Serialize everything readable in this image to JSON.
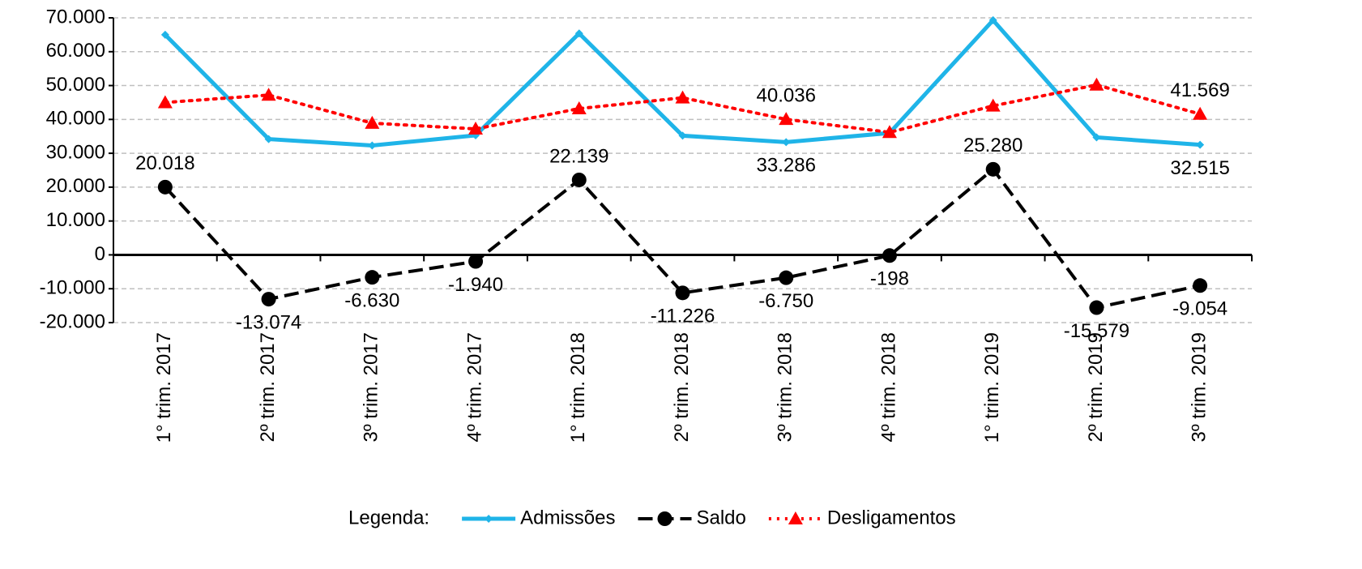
{
  "chart_data": {
    "type": "line",
    "categories": [
      "1° trim. 2017",
      "2º trim. 2017",
      "3º trim. 2017",
      "4º trim. 2017",
      "1° trim. 2018",
      "2º trim. 2018",
      "3º trim. 2018",
      "4º trim. 2018",
      "1° trim. 2019",
      "2º trim. 2019",
      "3º trim. 2019"
    ],
    "series": [
      {
        "name": "Admissões",
        "color": "#1fb4e8",
        "style": "solid",
        "marker": "diamond",
        "values": [
          65000,
          34200,
          32300,
          35300,
          65400,
          35200,
          33286,
          36000,
          69300,
          34700,
          32515
        ],
        "value_labels": [
          null,
          null,
          null,
          null,
          null,
          null,
          "33.286",
          null,
          null,
          null,
          "32.515"
        ]
      },
      {
        "name": "Saldo",
        "color": "#000000",
        "style": "dashed",
        "marker": "circle",
        "values": [
          20018,
          -13074,
          -6630,
          -1940,
          22139,
          -11226,
          -6750,
          -198,
          25280,
          -15579,
          -9054
        ],
        "value_labels": [
          "20.018",
          "-13.074",
          "-6.630",
          "-1.940",
          "22.139",
          "-11.226",
          "-6.750",
          "-198",
          "25.280",
          "-15.579",
          "-9.054"
        ]
      },
      {
        "name": "Desligamentos",
        "color": "#ff0000",
        "style": "dotted",
        "marker": "triangle",
        "values": [
          45000,
          47200,
          38900,
          37200,
          43200,
          46400,
          40036,
          36200,
          44000,
          50200,
          41569
        ],
        "value_labels": [
          null,
          null,
          null,
          null,
          null,
          null,
          "40.036",
          null,
          null,
          null,
          "41.569"
        ]
      }
    ],
    "ylim": [
      -20000,
      70000
    ],
    "yticks": [
      {
        "value": -20000,
        "label": "-20.000"
      },
      {
        "value": -10000,
        "label": "-10.000"
      },
      0,
      {
        "value": 10000,
        "label": "10.000"
      },
      {
        "value": 20000,
        "label": "20.000"
      },
      {
        "value": 30000,
        "label": "30.000"
      },
      {
        "value": 40000,
        "label": "40.000"
      },
      {
        "value": 50000,
        "label": "50.000"
      },
      {
        "value": 60000,
        "label": "60.000"
      },
      {
        "value": 70000,
        "label": "70.000"
      }
    ],
    "grid": true,
    "legend_title": "Legenda:",
    "legend": "bottom"
  }
}
